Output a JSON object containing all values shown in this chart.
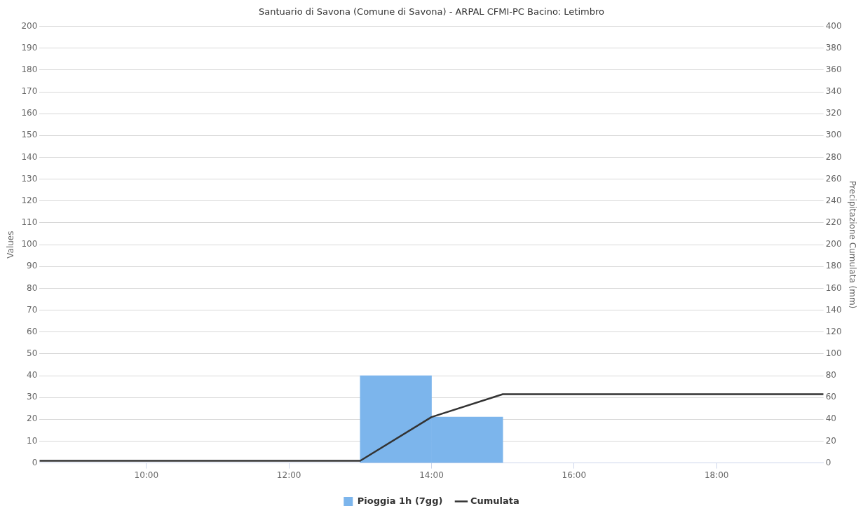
{
  "chart_data": {
    "type": "histogram",
    "title": "Santuario di Savona (Comune di Savona) - ARPAL CFMI-PC Bacino: Letimbro",
    "ylabel": "Values",
    "y2label": "Precipitazione Cumulata (mm)",
    "xlim": [
      8.5,
      19.5
    ],
    "xticks": [
      {
        "value": 10,
        "label": "10:00"
      },
      {
        "value": 12,
        "label": "12:00"
      },
      {
        "value": 14,
        "label": "14:00"
      },
      {
        "value": 16,
        "label": "16:00"
      },
      {
        "value": 18,
        "label": "18:00"
      }
    ],
    "ylim": [
      0,
      200
    ],
    "yticks": [
      0,
      10,
      20,
      30,
      40,
      50,
      60,
      70,
      80,
      90,
      100,
      110,
      120,
      130,
      140,
      150,
      160,
      170,
      180,
      190,
      200
    ],
    "y2lim": [
      0,
      400
    ],
    "y2ticks": [
      0,
      20,
      40,
      60,
      80,
      100,
      120,
      140,
      160,
      180,
      200,
      220,
      240,
      260,
      280,
      300,
      320,
      340,
      360,
      380,
      400
    ],
    "series": [
      {
        "name": "Pioggia 1h (7gg)",
        "color": "#7cb5ec",
        "bins": [
          13,
          14,
          15
        ],
        "values": [
          40,
          21
        ]
      },
      {
        "type": "line",
        "name": "Cumulata",
        "color": "#333333",
        "axis": "y2",
        "x": [
          8.5,
          9,
          10,
          11,
          12,
          13,
          14,
          15,
          16,
          17,
          18,
          19,
          19.5
        ],
        "values": [
          2,
          2,
          2,
          2,
          2,
          2,
          42,
          63,
          63,
          63,
          63,
          63,
          63
        ]
      }
    ],
    "grid": "y",
    "legend": "bottom",
    "marker": "none"
  }
}
